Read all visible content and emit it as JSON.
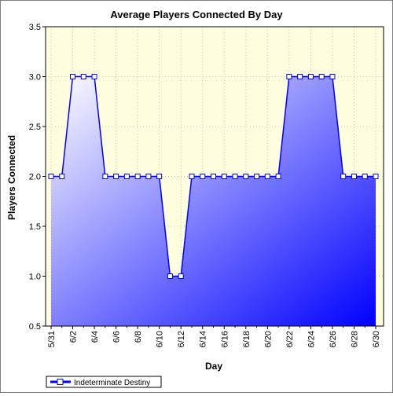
{
  "chart_data": {
    "type": "area",
    "title": "Average Players Connected By Day",
    "xlabel": "Day",
    "ylabel": "Players Connected",
    "ylim": [
      0.5,
      3.5
    ],
    "yticks": [
      "0.5",
      "1.0",
      "1.5",
      "2.0",
      "2.5",
      "3.0",
      "3.5"
    ],
    "x": [
      "5/31",
      "6/1",
      "6/2",
      "6/3",
      "6/4",
      "6/5",
      "6/6",
      "6/7",
      "6/8",
      "6/9",
      "6/10",
      "6/11",
      "6/12",
      "6/13",
      "6/14",
      "6/15",
      "6/16",
      "6/17",
      "6/18",
      "6/19",
      "6/20",
      "6/21",
      "6/22",
      "6/23",
      "6/24",
      "6/25",
      "6/26",
      "6/27",
      "6/28",
      "6/29",
      "6/30"
    ],
    "xtick_labels": [
      "5/31",
      "6/2",
      "6/4",
      "6/6",
      "6/8",
      "6/10",
      "6/12",
      "6/14",
      "6/16",
      "6/18",
      "6/20",
      "6/22",
      "6/24",
      "6/26",
      "6/28",
      "6/30"
    ],
    "series": [
      {
        "name": "Indeterminate Destiny",
        "values": [
          2,
          2,
          3,
          3,
          3,
          2,
          2,
          2,
          2,
          2,
          2,
          1,
          1,
          2,
          2,
          2,
          2,
          2,
          2,
          2,
          2,
          2,
          3,
          3,
          3,
          3,
          3,
          2,
          2,
          2,
          2
        ]
      }
    ],
    "grid": true,
    "legend": "bottom-left",
    "colors": {
      "plot_background": "#ffffe0",
      "series_line": "#0000ff",
      "fill_light": "#ffffff",
      "fill_dark": "#0000ff",
      "marker_fill": "#ffffff",
      "grid": "#c8c8a0"
    }
  }
}
